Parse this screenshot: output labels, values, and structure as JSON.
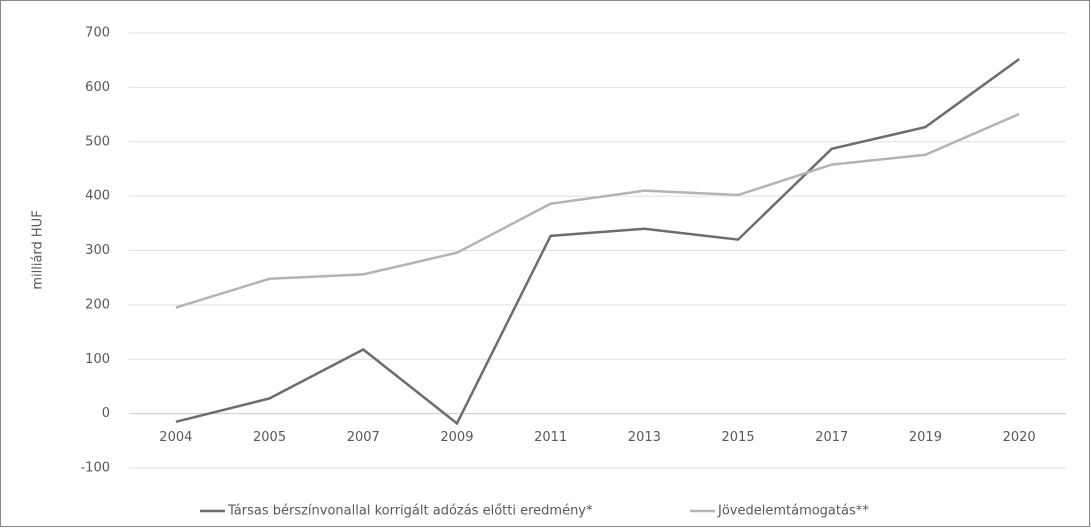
{
  "chart_data": {
    "type": "line",
    "ylabel": "milliárd HUF",
    "categories": [
      "2004",
      "2005",
      "2007",
      "2009",
      "2011",
      "2013",
      "2015",
      "2017",
      "2019",
      "2020"
    ],
    "series": [
      {
        "name": "Társas bérszínvonallal korrigált adózás előtti eredmény*",
        "color": "#6d6d6d",
        "values": [
          -15,
          28,
          118,
          -18,
          327,
          340,
          320,
          487,
          527,
          652
        ]
      },
      {
        "name": "Jövedelemtámogatás**",
        "color": "#b4b4b4",
        "values": [
          195,
          248,
          256,
          296,
          386,
          410,
          402,
          458,
          476,
          551
        ]
      }
    ],
    "ylim": [
      -100,
      700
    ],
    "yticks": [
      -100,
      0,
      100,
      200,
      300,
      400,
      500,
      600,
      700
    ],
    "grid": true
  }
}
